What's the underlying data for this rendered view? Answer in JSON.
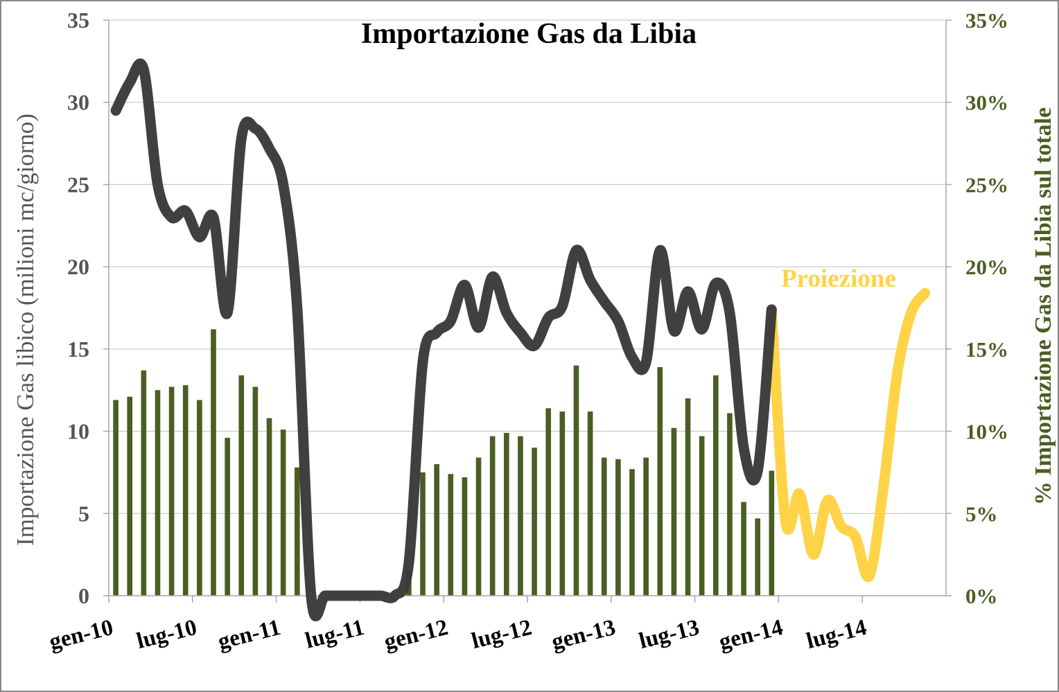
{
  "chart_data": {
    "type": "bar+line",
    "title": "Importazione Gas da Libia",
    "ylabel_left": "Importazione Gas libico (milioni mc/giorno)",
    "ylabel_right": "% Importazione Gas da Libia sul totale",
    "ylim_left": [
      0,
      35
    ],
    "ylim_right": [
      0,
      35
    ],
    "yticks_left": [
      "0",
      "5",
      "10",
      "15",
      "20",
      "25",
      "30",
      "35"
    ],
    "yticks_right": [
      "0%",
      "5%",
      "10%",
      "15%",
      "20%",
      "25%",
      "30%",
      "35%"
    ],
    "x_tick_labels": [
      "gen-10",
      "lug-10",
      "gen-11",
      "lug-11",
      "gen-12",
      "lug-12",
      "gen-13",
      "lug-13",
      "gen-14",
      "lug-14"
    ],
    "x_start": "2010-01",
    "x_end": "2014-12",
    "grid": true,
    "annotation": "Proiezione",
    "colors": {
      "bars": "#4a5e23",
      "line": "#3a3a3a",
      "projection": "#ffd347",
      "grid": "#bfbfbf",
      "axis": "#a6a6a6",
      "frame": "#888888"
    },
    "series": [
      {
        "type": "bar",
        "axis": "right",
        "x": [
          "2010-01",
          "2010-02",
          "2010-03",
          "2010-04",
          "2010-05",
          "2010-06",
          "2010-07",
          "2010-08",
          "2010-09",
          "2010-10",
          "2010-11",
          "2010-12",
          "2011-01",
          "2011-02",
          "2011-03",
          "2011-04",
          "2011-05",
          "2011-06",
          "2011-07",
          "2011-08",
          "2011-09",
          "2011-10",
          "2011-11",
          "2011-12",
          "2012-01",
          "2012-02",
          "2012-03",
          "2012-04",
          "2012-05",
          "2012-06",
          "2012-07",
          "2012-08",
          "2012-09",
          "2012-10",
          "2012-11",
          "2012-12",
          "2013-01",
          "2013-02",
          "2013-03",
          "2013-04",
          "2013-05",
          "2013-06",
          "2013-07",
          "2013-08",
          "2013-09",
          "2013-10",
          "2013-11",
          "2013-12"
        ],
        "values": [
          11.9,
          12.1,
          13.7,
          12.5,
          12.7,
          12.8,
          11.9,
          16.2,
          9.6,
          13.4,
          12.7,
          10.8,
          10.1,
          7.8,
          0,
          0,
          0,
          0,
          0,
          0,
          0,
          1.5,
          7.5,
          8.0,
          7.4,
          7.2,
          8.4,
          9.7,
          9.9,
          9.7,
          9.0,
          11.4,
          11.2,
          14.0,
          11.2,
          8.4,
          8.3,
          7.7,
          8.4,
          13.9,
          10.2,
          12.0,
          9.7,
          13.4,
          11.1,
          5.7,
          4.7,
          7.6
        ]
      },
      {
        "type": "line",
        "axis": "left",
        "x": [
          "2010-01",
          "2010-02",
          "2010-03",
          "2010-04",
          "2010-05",
          "2010-06",
          "2010-07",
          "2010-08",
          "2010-09",
          "2010-10",
          "2010-11",
          "2010-12",
          "2011-01",
          "2011-02",
          "2011-03",
          "2011-04",
          "2011-05",
          "2011-06",
          "2011-07",
          "2011-08",
          "2011-09",
          "2011-10",
          "2011-11",
          "2011-12",
          "2012-01",
          "2012-02",
          "2012-03",
          "2012-04",
          "2012-05",
          "2012-06",
          "2012-07",
          "2012-08",
          "2012-09",
          "2012-10",
          "2012-11",
          "2012-12",
          "2013-01",
          "2013-02",
          "2013-03",
          "2013-04",
          "2013-05",
          "2013-06",
          "2013-07",
          "2013-08",
          "2013-09",
          "2013-10",
          "2013-11",
          "2013-12"
        ],
        "values": [
          29.5,
          31.2,
          32.0,
          25.0,
          23.0,
          23.4,
          21.8,
          23.0,
          17.2,
          27.8,
          28.4,
          27.2,
          25.0,
          17.5,
          0,
          0,
          0,
          0,
          0,
          0,
          0,
          2.0,
          14.2,
          16.0,
          16.7,
          18.9,
          16.3,
          19.4,
          17.2,
          16.0,
          15.2,
          16.9,
          17.6,
          21.0,
          19.2,
          17.9,
          16.7,
          14.5,
          14.2,
          21.0,
          16.1,
          18.5,
          16.2,
          19.0,
          17.2,
          9.0,
          7.6,
          17.4
        ]
      },
      {
        "type": "line",
        "axis": "left",
        "name": "Proiezione",
        "x": [
          "2013-12",
          "2014-01",
          "2014-02",
          "2014-03",
          "2014-04",
          "2014-05",
          "2014-06",
          "2014-07",
          "2014-08",
          "2014-09",
          "2014-10",
          "2014-11"
        ],
        "values": [
          17.4,
          4.5,
          6.2,
          2.5,
          5.8,
          4.2,
          3.6,
          1.2,
          6.5,
          13.5,
          17.2,
          18.4
        ]
      }
    ]
  }
}
